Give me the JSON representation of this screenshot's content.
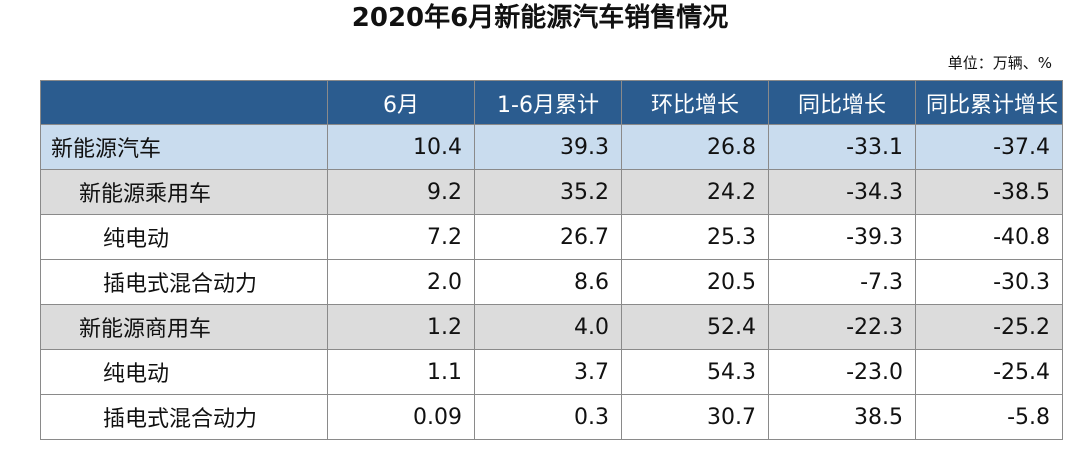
{
  "title": "2020年6月新能源汽车销售情况",
  "unit": "单位：万辆、%",
  "table": {
    "headers": [
      "",
      "6月",
      "1-6月累计",
      "环比增长",
      "同比增长",
      "同比累计增长"
    ],
    "rows": [
      {
        "level": 0,
        "name": "新能源汽车",
        "values": [
          "10.4",
          "39.3",
          "26.8",
          "-33.1",
          "-37.4"
        ]
      },
      {
        "level": 1,
        "name": "新能源乘用车",
        "values": [
          "9.2",
          "35.2",
          "24.2",
          "-34.3",
          "-38.5"
        ]
      },
      {
        "level": 2,
        "name": "纯电动",
        "values": [
          "7.2",
          "26.7",
          "25.3",
          "-39.3",
          "-40.8"
        ]
      },
      {
        "level": 2,
        "name": "插电式混合动力",
        "values": [
          "2.0",
          "8.6",
          "20.5",
          "-7.3",
          "-30.3"
        ]
      },
      {
        "level": 1,
        "name": "新能源商用车",
        "values": [
          "1.2",
          "4.0",
          "52.4",
          "-22.3",
          "-25.2"
        ]
      },
      {
        "level": 2,
        "name": "纯电动",
        "values": [
          "1.1",
          "3.7",
          "54.3",
          "-23.0",
          "-25.4"
        ]
      },
      {
        "level": 2,
        "name": "插电式混合动力",
        "values": [
          "0.09",
          "0.3",
          "30.7",
          "38.5",
          "-5.8"
        ]
      }
    ]
  },
  "colors": {
    "header_bg": "#2b5c8f",
    "total_row_bg": "#c9dcee",
    "subtotal_row_bg": "#dcdcdc",
    "detail_row_bg": "#ffffff"
  }
}
